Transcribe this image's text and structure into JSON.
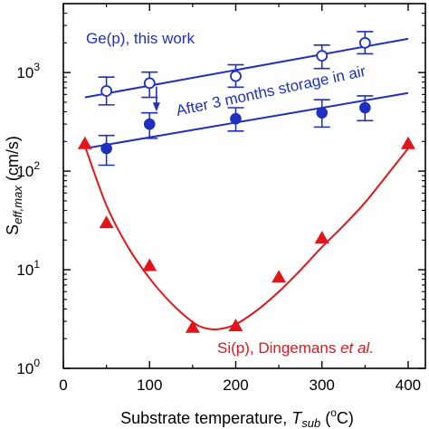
{
  "chart_data": {
    "type": "scatter",
    "xlabel_text": "Substrate temperature, ",
    "xlabel_var": "T",
    "xlabel_sub": "sub",
    "xlabel_unit_open": " (",
    "xlabel_unit_sup": "o",
    "xlabel_unit_close": "C)",
    "ylabel_main": "S",
    "ylabel_sub": "eff,max",
    "ylabel_unit": " (cm/s)",
    "xlim": [
      0,
      420
    ],
    "ylim": [
      1,
      5000
    ],
    "yscale": "log",
    "x_ticks": [
      "0",
      "100",
      "200",
      "300",
      "400"
    ],
    "y_ticks": [
      {
        "base": "10",
        "exp": "0",
        "value": 1
      },
      {
        "base": "10",
        "exp": "1",
        "value": 10
      },
      {
        "base": "10",
        "exp": "2",
        "value": 100
      },
      {
        "base": "10",
        "exp": "3",
        "value": 1000
      }
    ],
    "annotations": {
      "ge_label": "Ge(p), this work",
      "storage_label": "After 3 months storage in air",
      "si_label_main": "Si(p), Dingemans ",
      "si_label_italic": "et al."
    },
    "colors": {
      "ge": "#1f2fbf",
      "si": "#e0161c"
    },
    "series": [
      {
        "id": "ge-fresh",
        "marker": "open-circle",
        "x": [
          50,
          100,
          200,
          300,
          350
        ],
        "y": [
          650,
          780,
          920,
          1480,
          2000
        ],
        "yerr_low": [
          470,
          560,
          710,
          1100,
          1550
        ],
        "yerr_high": [
          900,
          1010,
          1200,
          1900,
          2600
        ],
        "fit": {
          "x": [
            25,
            400
          ],
          "y": [
            560,
            2200
          ]
        }
      },
      {
        "id": "ge-stored",
        "marker": "filled-circle",
        "x": [
          50,
          100,
          200,
          300,
          350
        ],
        "y": [
          170,
          300,
          340,
          390,
          440
        ],
        "yerr_low": [
          115,
          215,
          255,
          280,
          325
        ],
        "yerr_high": [
          230,
          390,
          440,
          530,
          580
        ],
        "fit": {
          "x": [
            25,
            400
          ],
          "y": [
            170,
            620
          ]
        }
      },
      {
        "id": "si",
        "marker": "filled-triangle",
        "x": [
          25,
          50,
          100,
          150,
          200,
          250,
          300,
          400
        ],
        "y": [
          190,
          30,
          11,
          2.6,
          2.7,
          8.4,
          21,
          190
        ],
        "fit": {
          "x": [
            25,
            50,
            75,
            100,
            125,
            150,
            165,
            180,
            200,
            225,
            250,
            275,
            300,
            325,
            350,
            375,
            400
          ],
          "y": [
            180,
            45,
            17,
            8.2,
            4.6,
            2.95,
            2.55,
            2.5,
            2.8,
            3.9,
            6.0,
            9.9,
            17,
            28,
            48,
            90,
            170
          ]
        }
      }
    ]
  }
}
